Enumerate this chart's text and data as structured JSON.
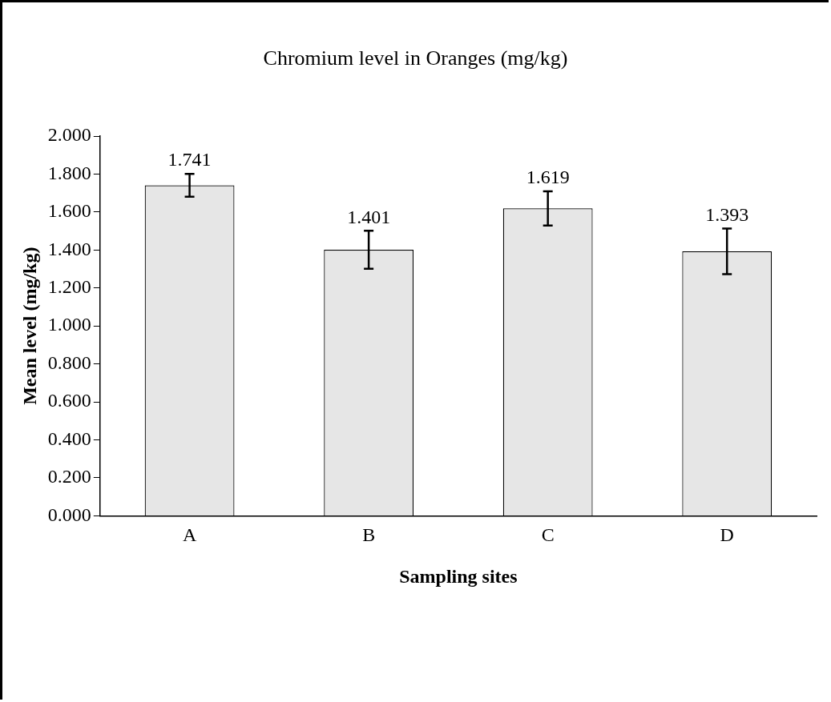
{
  "chart_data": {
    "type": "bar",
    "title": "Chromium level in Oranges (mg/kg)",
    "xlabel": "Sampling sites",
    "ylabel": "Mean level (mg/kg)",
    "categories": [
      "A",
      "B",
      "C",
      "D"
    ],
    "values": [
      1.741,
      1.401,
      1.619,
      1.393
    ],
    "errors": [
      0.06,
      0.1,
      0.09,
      0.12
    ],
    "color": "#e6e6e6",
    "ylim": [
      0,
      2
    ],
    "yticks": [
      {
        "value": 0,
        "label": "0.000"
      },
      {
        "value": 0.2,
        "label": "0.200"
      },
      {
        "value": 0.4,
        "label": "0.400"
      },
      {
        "value": 0.6,
        "label": "0.600"
      },
      {
        "value": 0.8,
        "label": "0.800"
      },
      {
        "value": 1,
        "label": "1.000"
      },
      {
        "value": 1.2,
        "label": "1.200"
      },
      {
        "value": 1.4,
        "label": "1.400"
      },
      {
        "value": 1.6,
        "label": "1.600"
      },
      {
        "value": 1.8,
        "label": "1.800"
      },
      {
        "value": 2,
        "label": "2.000"
      }
    ],
    "grid": false,
    "legend": false,
    "data_labels": true
  }
}
